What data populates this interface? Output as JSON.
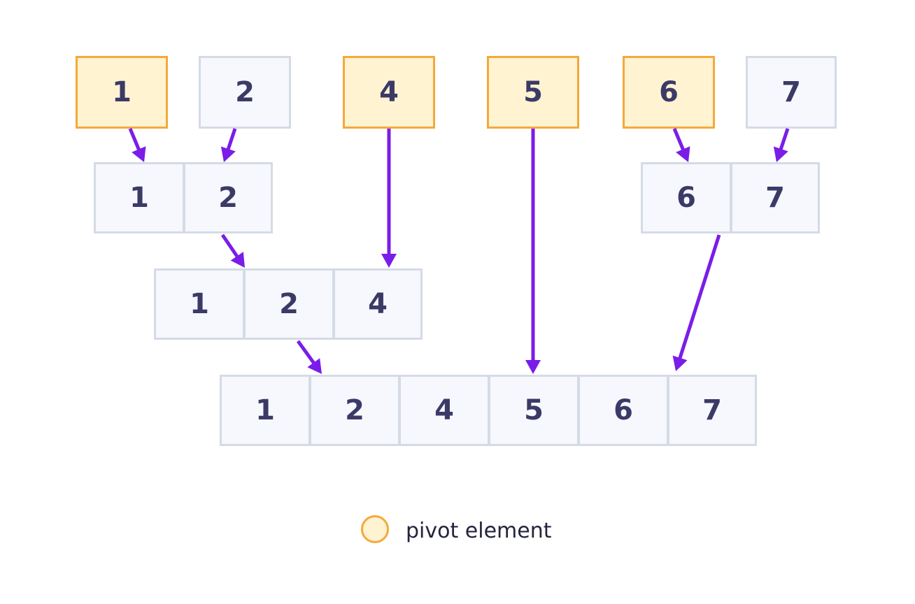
{
  "diagram": {
    "rows": [
      {
        "name": "pivots",
        "cells": [
          {
            "v": "1",
            "pivot": true
          },
          {
            "v": "2",
            "pivot": false
          },
          {
            "v": "4",
            "pivot": true
          },
          {
            "v": "5",
            "pivot": true
          },
          {
            "v": "6",
            "pivot": true
          },
          {
            "v": "7",
            "pivot": false
          }
        ]
      },
      {
        "name": "left-pair",
        "cells": [
          {
            "v": "1",
            "pivot": false
          },
          {
            "v": "2",
            "pivot": false
          }
        ]
      },
      {
        "name": "right-pair",
        "cells": [
          {
            "v": "6",
            "pivot": false
          },
          {
            "v": "7",
            "pivot": false
          }
        ]
      },
      {
        "name": "merge-three",
        "cells": [
          {
            "v": "1",
            "pivot": false
          },
          {
            "v": "2",
            "pivot": false
          },
          {
            "v": "4",
            "pivot": false
          }
        ]
      },
      {
        "name": "sorted-array",
        "cells": [
          {
            "v": "1",
            "pivot": false
          },
          {
            "v": "2",
            "pivot": false
          },
          {
            "v": "4",
            "pivot": false
          },
          {
            "v": "5",
            "pivot": false
          },
          {
            "v": "6",
            "pivot": false
          },
          {
            "v": "7",
            "pivot": false
          }
        ]
      }
    ],
    "arrow_color": "#7a1de8",
    "pivot_fill": "#fff3d1",
    "pivot_border": "#f4a93c",
    "cell_fill": "#f6f8fd",
    "cell_border": "#d5dbe5",
    "text_color": "#3b3a67"
  },
  "legend": {
    "label": "pivot element"
  }
}
